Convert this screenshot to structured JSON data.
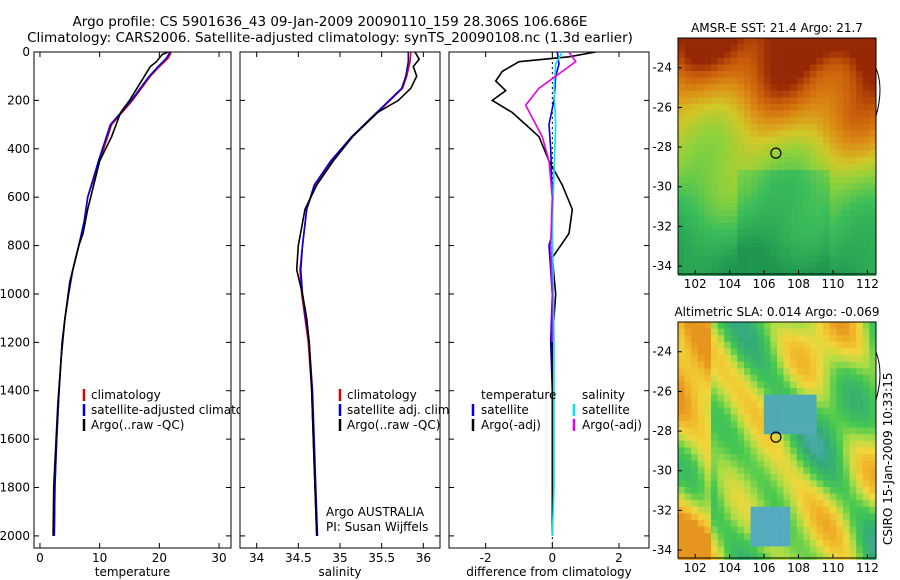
{
  "header": {
    "line1": "Argo profile: CS 5901636_43 09-Jan-2009 20090110_159 28.306S 106.686E",
    "line2": "Climatology: CARS2006. Satellite-adjusted climatology: synTS_20090108.nc (1.3d earlier)"
  },
  "colors": {
    "climatology": "#e00000",
    "satellite": "#0000e6",
    "argo": "#000000",
    "sal_satellite": "#00e5e5",
    "sal_argo": "#e600e6"
  },
  "chart_data": [
    {
      "type": "line",
      "xlabel": "temperature",
      "xlim": [
        -1,
        32
      ],
      "ylim": [
        2050,
        0
      ],
      "xticks": [
        0,
        10,
        20,
        30
      ],
      "yticks": [
        0,
        200,
        400,
        600,
        800,
        1000,
        1200,
        1400,
        1600,
        1800,
        2000
      ],
      "legend": [
        "climatology",
        "satellite-adjusted climatology",
        "Argo(..raw -QC)"
      ],
      "series": [
        {
          "name": "climatology",
          "color": "climatology",
          "x": [
            22.0,
            21.5,
            20.0,
            18.5,
            15.5,
            12.0,
            10.0,
            8.0,
            7.5,
            6.5,
            5.5,
            4.8,
            4.2,
            3.7,
            3.2,
            2.8,
            2.5,
            2.4
          ],
          "y": [
            0,
            25,
            60,
            100,
            200,
            300,
            450,
            600,
            700,
            800,
            900,
            1000,
            1100,
            1200,
            1400,
            1600,
            1800,
            2000
          ]
        },
        {
          "name": "satellite-adjusted climatology",
          "color": "satellite",
          "x": [
            21.8,
            21.2,
            19.8,
            18.3,
            15.3,
            11.8,
            9.8,
            8.0,
            7.4,
            6.5,
            5.5,
            4.8,
            4.2,
            3.7,
            3.2,
            2.8,
            2.5,
            2.4
          ],
          "y": [
            0,
            25,
            60,
            100,
            200,
            300,
            450,
            600,
            700,
            800,
            900,
            1000,
            1100,
            1200,
            1400,
            1600,
            1800,
            2000
          ]
        },
        {
          "name": "Argo(..raw -QC)",
          "color": "argo",
          "x": [
            21.5,
            20.5,
            19.5,
            18.5,
            17.5,
            15.0,
            13.5,
            12.0,
            10.0,
            9.0,
            8.0,
            7.2,
            6.5,
            5.0,
            4.2,
            3.6,
            3.0,
            2.7,
            2.3,
            2.2
          ],
          "y": [
            0,
            10,
            40,
            60,
            100,
            200,
            250,
            350,
            450,
            550,
            650,
            750,
            800,
            950,
            1100,
            1250,
            1450,
            1600,
            1800,
            2000
          ]
        }
      ]
    },
    {
      "type": "line",
      "xlabel": "salinity",
      "xlim": [
        33.8,
        36.2
      ],
      "ylim": [
        2050,
        0
      ],
      "xticks": [
        34,
        34.5,
        35,
        35.5,
        36
      ],
      "yticks": [
        0,
        200,
        400,
        600,
        800,
        1000,
        1200,
        1400,
        1600,
        1800,
        2000
      ],
      "legend": [
        "climatology",
        "satellite adj. clim.",
        "Argo(..raw -QC)"
      ],
      "annotation": [
        "Argo AUSTRALIA",
        "PI: Susan Wijffels"
      ],
      "series": [
        {
          "name": "climatology",
          "color": "climatology",
          "x": [
            35.85,
            35.84,
            35.8,
            35.75,
            35.45,
            35.15,
            34.9,
            34.7,
            34.6,
            34.55,
            34.52,
            34.54,
            34.58,
            34.62,
            34.66,
            34.68,
            34.7,
            34.72
          ],
          "y": [
            0,
            40,
            100,
            150,
            250,
            350,
            450,
            550,
            650,
            800,
            900,
            1000,
            1100,
            1200,
            1400,
            1600,
            1800,
            2000
          ]
        },
        {
          "name": "satellite adj. clim.",
          "color": "satellite",
          "x": [
            35.82,
            35.82,
            35.79,
            35.74,
            35.44,
            35.14,
            34.89,
            34.69,
            34.6,
            34.55,
            34.53,
            34.55,
            34.59,
            34.63,
            34.67,
            34.69,
            34.71,
            34.73
          ],
          "y": [
            0,
            40,
            100,
            150,
            250,
            350,
            450,
            550,
            650,
            800,
            900,
            1000,
            1100,
            1200,
            1400,
            1600,
            1800,
            2000
          ]
        },
        {
          "name": "Argo(..raw -QC)",
          "color": "argo",
          "x": [
            35.9,
            35.95,
            35.88,
            35.92,
            35.85,
            35.7,
            35.45,
            35.15,
            34.92,
            34.72,
            34.58,
            34.5,
            34.48,
            34.55,
            34.6,
            34.63,
            34.66,
            34.68,
            34.7,
            34.72
          ],
          "y": [
            0,
            30,
            60,
            100,
            150,
            200,
            250,
            350,
            450,
            550,
            650,
            800,
            900,
            1000,
            1100,
            1200,
            1400,
            1600,
            1800,
            2000
          ]
        }
      ]
    },
    {
      "type": "line",
      "xlabel": "difference from climatology",
      "xlim": [
        -3.1,
        2.9
      ],
      "ylim": [
        2050,
        0
      ],
      "xticks": [
        -2,
        0,
        2
      ],
      "yticks": [
        0,
        200,
        400,
        600,
        800,
        1000,
        1200,
        1400,
        1600,
        1800,
        2000
      ],
      "legend_left": [
        "temperature",
        "satellite",
        "Argo(-adj)"
      ],
      "legend_right": [
        "salinity",
        "satellite",
        "Argo(-adj)"
      ],
      "series": [
        {
          "name": "temperature satellite",
          "color": "satellite",
          "x": [
            0.15,
            0.2,
            0.1,
            0.05,
            -0.1,
            -0.05,
            0.0,
            0.0,
            0.0,
            -0.1,
            -0.05,
            0.0,
            -0.05,
            0.0,
            0.0,
            0.0,
            0.0,
            0.0
          ],
          "y": [
            0,
            50,
            100,
            200,
            300,
            400,
            600,
            700,
            750,
            800,
            900,
            1000,
            1200,
            1400,
            1600,
            1800,
            1900,
            2000
          ]
        },
        {
          "name": "temperature Argo(-adj)",
          "color": "argo",
          "x": [
            1.3,
            0.5,
            -1.0,
            -1.5,
            -1.7,
            -1.4,
            -1.8,
            -1.2,
            -0.8,
            -0.4,
            -0.1,
            0.3,
            0.6,
            0.5,
            0.0,
            0.1,
            0.0,
            0.0,
            0.0,
            0.0
          ],
          "y": [
            0,
            20,
            40,
            80,
            120,
            160,
            200,
            250,
            300,
            350,
            450,
            550,
            650,
            750,
            850,
            1000,
            1200,
            1500,
            1800,
            2000
          ]
        },
        {
          "name": "salinity satellite",
          "color": "sal_satellite",
          "x": [
            0.3,
            0.1,
            0.05,
            0.1,
            0.05,
            0.0,
            0.02,
            0.05,
            0.05,
            0.05,
            0.05,
            0.0
          ],
          "y": [
            0,
            50,
            150,
            300,
            500,
            700,
            900,
            1200,
            1400,
            1600,
            1800,
            2000
          ]
        },
        {
          "name": "salinity Argo(-adj)",
          "color": "sal_argo",
          "x": [
            0.5,
            0.7,
            0.3,
            -0.4,
            -0.8,
            -0.3,
            -0.1,
            0.0,
            -0.05,
            0.0,
            0.0
          ],
          "y": [
            0,
            40,
            80,
            150,
            220,
            350,
            450,
            600,
            800,
            1000,
            1200
          ]
        }
      ]
    },
    {
      "type": "heatmap",
      "title": "AMSR-E SST: 21.4 Argo: 21.7",
      "xlim": [
        101,
        112.5
      ],
      "ylim": [
        -34.4,
        -22.5
      ],
      "xticks": [
        102,
        104,
        106,
        108,
        110,
        112
      ],
      "yticks": [
        -24,
        -26,
        -28,
        -30,
        -32,
        -34
      ],
      "marker": {
        "lon": 106.686,
        "lat": -28.306
      }
    },
    {
      "type": "heatmap",
      "title": "Altimetric SLA: 0.014 Argo: -0.069",
      "xlim": [
        101,
        112.5
      ],
      "ylim": [
        -34.4,
        -22.5
      ],
      "xticks": [
        102,
        104,
        106,
        108,
        110,
        112
      ],
      "yticks": [
        -24,
        -26,
        -28,
        -30,
        -32,
        -34
      ],
      "marker": {
        "lon": 106.686,
        "lat": -28.306
      }
    }
  ],
  "footer": {
    "stamp": "CSIRO 15-Jan-2009 10:33:15"
  }
}
